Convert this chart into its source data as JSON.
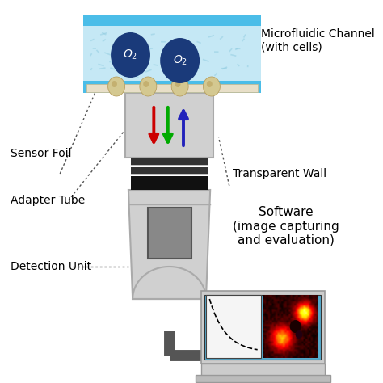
{
  "bg_color": "#ffffff",
  "channel_color": "#4bbde8",
  "channel_inner_color": "#c5e8f5",
  "tube_body_color": "#d0d0d0",
  "black_ring_color": "#111111",
  "gray_box_color": "#888888",
  "o2_circle_color": "#1a3a7a",
  "o2_text_color": "#ffffff",
  "arrow_colors": [
    "#cc0000",
    "#00aa00",
    "#2222bb"
  ],
  "cable_color": "#555555",
  "labels": {
    "sensor_foil": "Sensor Foil",
    "microfluidic": "Microfluidic Channel\n(with cells)",
    "adapter_tube": "Adapter Tube",
    "transparent_wall": "Transparent Wall",
    "detection_unit": "Detection Unit",
    "software": "Software\n(image capturing\nand evaluation)"
  },
  "label_fontsize": 10,
  "o2_fontsize": 10
}
